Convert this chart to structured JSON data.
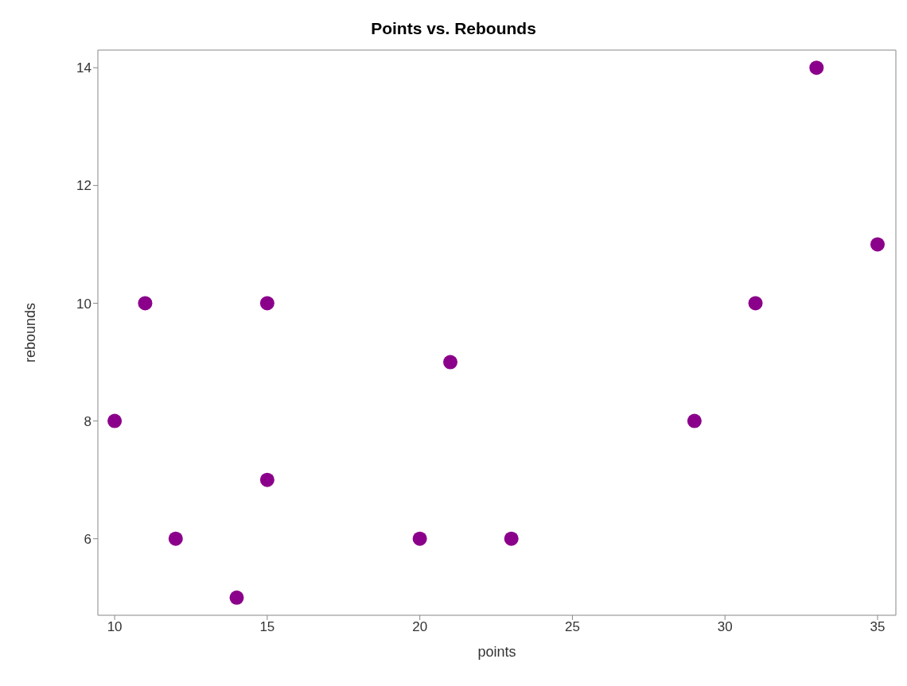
{
  "chart_data": {
    "type": "scatter",
    "title": "Points vs. Rebounds",
    "xlabel": "points",
    "ylabel": "rebounds",
    "x": [
      10,
      11,
      12,
      14,
      15,
      15,
      20,
      21,
      23,
      29,
      31,
      33,
      35
    ],
    "values": [
      8,
      10,
      6,
      5,
      10,
      7,
      6,
      9,
      6,
      8,
      10,
      14,
      11
    ],
    "color": "#8b008b",
    "marker": "circle",
    "xlim": [
      9.45,
      35.6
    ],
    "xticks": [
      10,
      15,
      20,
      25,
      30,
      35
    ],
    "ylim": [
      4.7,
      14.3
    ],
    "yticks": [
      6,
      8,
      10,
      12,
      14
    ],
    "grid": false,
    "legend": false
  }
}
